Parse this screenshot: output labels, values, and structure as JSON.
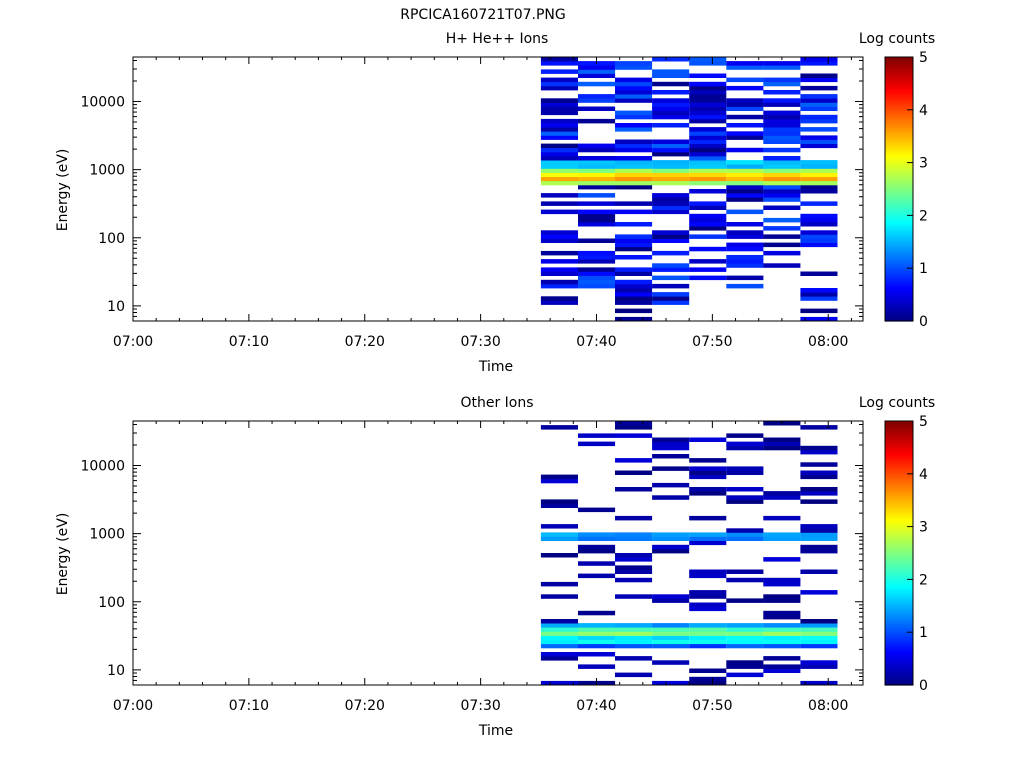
{
  "figure_title": "RPCICA160721T07.PNG",
  "chart_data": [
    {
      "type": "heatmap",
      "title": "H+ He++ Ions",
      "xlabel": "Time",
      "ylabel": "Energy (eV)",
      "x_tick_labels": [
        "07:00",
        "07:10",
        "07:20",
        "07:30",
        "07:40",
        "07:50",
        "08:00"
      ],
      "x_tick_minutes": [
        0,
        10,
        20,
        30,
        40,
        50,
        60
      ],
      "xlim_minutes": [
        0,
        63
      ],
      "y_scale": "log",
      "ylim": [
        6,
        45000
      ],
      "y_tick_labels": [
        "10",
        "100",
        "1000",
        "10000"
      ],
      "y_tick_values": [
        10,
        100,
        1000,
        10000
      ],
      "colorbar": {
        "label": "Log counts",
        "range": [
          0,
          5
        ],
        "tick_labels": [
          "0",
          "1",
          "2",
          "3",
          "4",
          "5"
        ]
      },
      "time_bins_minutes": [
        [
          35.2,
          38.4
        ],
        [
          38.4,
          41.6
        ],
        [
          41.6,
          44.8
        ],
        [
          44.8,
          48.0
        ],
        [
          48.0,
          51.2
        ],
        [
          51.2,
          54.4
        ],
        [
          54.4,
          57.6
        ],
        [
          57.6,
          60.8
        ]
      ],
      "energy_range_eV": [
        6,
        45000
      ],
      "notes": "Intense band ~1 keV (log counts 3-4); scattered counts 0-1.5 from 10 eV to 40 keV after 07:35",
      "seed": 11,
      "bands": [
        {
          "lo": 600,
          "hi": 1300,
          "vals": [
            2.6,
            3.5,
            3.2,
            2.6,
            1.6
          ]
        }
      ],
      "fill_prob": 0.62,
      "noise_max": 1.1,
      "energy_cutoffs": [
        [
          10,
          45000
        ],
        [
          18,
          45000
        ],
        [
          6,
          45000
        ],
        [
          11,
          45000
        ],
        [
          20,
          45000
        ],
        [
          17,
          45000
        ],
        [
          28,
          45000
        ],
        [
          6,
          45000
        ]
      ]
    },
    {
      "type": "heatmap",
      "title": "Other Ions",
      "xlabel": "Time",
      "ylabel": "Energy (eV)",
      "x_tick_labels": [
        "07:00",
        "07:10",
        "07:20",
        "07:30",
        "07:40",
        "07:50",
        "08:00"
      ],
      "x_tick_minutes": [
        0,
        10,
        20,
        30,
        40,
        50,
        60
      ],
      "xlim_minutes": [
        0,
        63
      ],
      "y_scale": "log",
      "ylim": [
        6,
        45000
      ],
      "y_tick_labels": [
        "10",
        "100",
        "1000",
        "10000"
      ],
      "y_tick_values": [
        10,
        100,
        1000,
        10000
      ],
      "colorbar": {
        "label": "Log counts",
        "range": [
          0,
          5
        ],
        "tick_labels": [
          "0",
          "1",
          "2",
          "3",
          "4",
          "5"
        ]
      },
      "time_bins_minutes": [
        [
          35.2,
          38.4
        ],
        [
          38.4,
          41.6
        ],
        [
          41.6,
          44.8
        ],
        [
          44.8,
          48.0
        ],
        [
          48.0,
          51.2
        ],
        [
          51.2,
          54.4
        ],
        [
          54.4,
          57.6
        ],
        [
          57.6,
          60.8
        ]
      ],
      "energy_range_eV": [
        6,
        45000
      ],
      "notes": "Band near ~900 eV (log counts ~1.5) and strong band ~30 eV (log counts ~2.5); sparse counts elsewhere",
      "seed": 29,
      "bands": [
        {
          "lo": 800,
          "hi": 1050,
          "vals": [
            1.3,
            1.8,
            1.4
          ]
        },
        {
          "lo": 22,
          "hi": 48,
          "vals": [
            1.0,
            1.8,
            2.6,
            2.2,
            1.4
          ]
        }
      ],
      "fill_prob": 0.28,
      "noise_max": 0.45,
      "energy_cutoffs": [
        [
          6,
          45000
        ],
        [
          6,
          45000
        ],
        [
          6,
          45000
        ],
        [
          6,
          45000
        ],
        [
          6,
          45000
        ],
        [
          6,
          45000
        ],
        [
          6,
          45000
        ],
        [
          6,
          45000
        ]
      ]
    }
  ]
}
